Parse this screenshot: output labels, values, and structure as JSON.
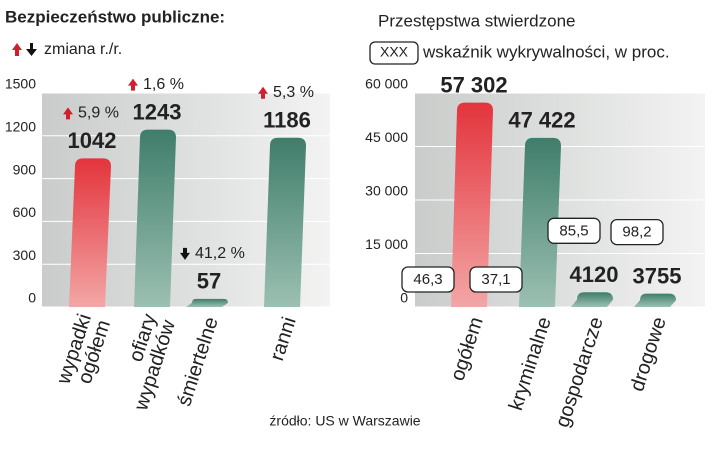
{
  "chart_data": [
    {
      "type": "bar",
      "title": "Bezpieczeństwo publiczne:",
      "legend": "zmiana r./r.",
      "categories": [
        "wypadki ogółem",
        "ofiary wypadków",
        "śmiertelne",
        "ranni"
      ],
      "values": [
        1042,
        1243,
        57,
        1186
      ],
      "colors": [
        "#e3343c",
        "#3f7d6a",
        "#3f7d6a",
        "#3f7d6a"
      ],
      "changes": [
        5.9,
        1.6,
        41.2,
        5.3
      ],
      "change_labels": [
        "5,9 %",
        "1,6 %",
        "41,2 %",
        "5,3 %"
      ],
      "change_directions": [
        "up",
        "up",
        "down",
        "up"
      ],
      "ylim": [
        0,
        1500
      ],
      "yticks": [
        0,
        300,
        600,
        900,
        1200,
        1500
      ],
      "grid": true
    },
    {
      "type": "bar",
      "title": "Przestępstwa stwierdzone",
      "legend_box": "XXX",
      "legend": "wskaźnik wykrywalności, w proc.",
      "categories": [
        "ogółem",
        "kryminalne",
        "gospodarcze",
        "drogowe"
      ],
      "values": [
        57302,
        47422,
        4120,
        3755
      ],
      "value_labels": [
        "57 302",
        "47 422",
        "4120",
        "3755"
      ],
      "colors": [
        "#e3343c",
        "#3f7d6a",
        "#3f7d6a",
        "#3f7d6a"
      ],
      "detection": [
        46.3,
        37.1,
        85.5,
        98.2
      ],
      "detection_labels": [
        "46,3",
        "37,1",
        "85,5",
        "98,2"
      ],
      "ylim": [
        0,
        60000
      ],
      "yticks": [
        0,
        {
          "value": 15000,
          "label": "15 000"
        },
        {
          "value": 30000,
          "label": "30 000"
        },
        {
          "value": 45000,
          "label": "45 000"
        },
        {
          "value": 60000,
          "label": "60 000"
        }
      ],
      "grid": true
    }
  ],
  "source": "źródło: US w Warszawie"
}
